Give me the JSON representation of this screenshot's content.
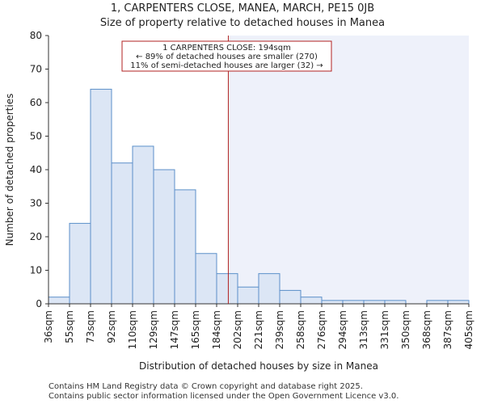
{
  "chart_data": {
    "type": "bar",
    "title_line1": "1, CARPENTERS CLOSE, MANEA, MARCH, PE15 0JB",
    "title_line2": "Size of property relative to detached houses in Manea",
    "xlabel": "Distribution of detached houses by size in Manea",
    "ylabel": "Number of detached properties",
    "ylim": [
      0,
      80
    ],
    "yticks": [
      0,
      10,
      20,
      30,
      40,
      50,
      60,
      70,
      80
    ],
    "bin_edges_sqm": [
      36,
      55,
      73,
      92,
      110,
      129,
      147,
      165,
      184,
      202,
      221,
      239,
      258,
      276,
      294,
      313,
      331,
      350,
      368,
      387,
      405
    ],
    "tick_labels": [
      "36sqm",
      "55sqm",
      "73sqm",
      "92sqm",
      "110sqm",
      "129sqm",
      "147sqm",
      "165sqm",
      "184sqm",
      "202sqm",
      "221sqm",
      "239sqm",
      "258sqm",
      "276sqm",
      "294sqm",
      "313sqm",
      "331sqm",
      "350sqm",
      "368sqm",
      "387sqm",
      "405sqm"
    ],
    "values": [
      2,
      24,
      64,
      42,
      47,
      40,
      34,
      15,
      9,
      5,
      9,
      4,
      2,
      1,
      1,
      1,
      1,
      0,
      1,
      1
    ],
    "marker": {
      "value_sqm": 194,
      "label_line1": "1 CARPENTERS CLOSE: 194sqm",
      "label_line2": "← 89% of detached houses are smaller (270)",
      "label_line3": "11% of semi-detached houses are larger (32) →"
    },
    "colors": {
      "bar_fill": "#dce6f5",
      "bar_stroke": "#5b8fc9",
      "marker_line": "#b22222",
      "shaded_region": "#eef1fa"
    }
  },
  "footer": {
    "line1": "Contains HM Land Registry data © Crown copyright and database right 2025.",
    "line2": "Contains public sector information licensed under the Open Government Licence v3.0."
  }
}
